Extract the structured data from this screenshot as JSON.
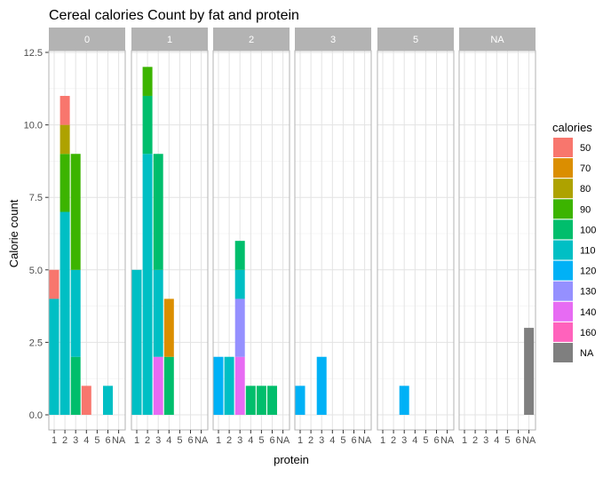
{
  "chart_data": {
    "type": "bar",
    "stacked": true,
    "title": "Cereal calories Count by fat and protein",
    "xlabel": "protein",
    "ylabel": "Calorie count",
    "ylim": [
      0,
      12.5
    ],
    "yticks": [
      0.0,
      2.5,
      5.0,
      7.5,
      10.0,
      12.5
    ],
    "y_tick_labels": [
      "0.0",
      "2.5",
      "5.0",
      "7.5",
      "10.0",
      "12.5"
    ],
    "categories": [
      "1",
      "2",
      "3",
      "4",
      "5",
      "6",
      "NA"
    ],
    "facet_variable": "fat",
    "facets": [
      "0",
      "1",
      "2",
      "3",
      "5",
      "NA"
    ],
    "grid": true,
    "legend": {
      "title": "calories",
      "placement": "right",
      "entries": [
        {
          "label": "50",
          "color": "#F8766D"
        },
        {
          "label": "70",
          "color": "#DB8E00"
        },
        {
          "label": "80",
          "color": "#AEA200"
        },
        {
          "label": "90",
          "color": "#3CB400"
        },
        {
          "label": "100",
          "color": "#00BE6C"
        },
        {
          "label": "110",
          "color": "#00BFC4"
        },
        {
          "label": "120",
          "color": "#00B1F6"
        },
        {
          "label": "130",
          "color": "#9590FF"
        },
        {
          "label": "140",
          "color": "#E76BF3"
        },
        {
          "label": "160",
          "color": "#FF62BC"
        },
        {
          "label": "NA",
          "color": "#7F7F7F"
        }
      ]
    },
    "data": [
      {
        "fat": "0",
        "protein": "1",
        "segments": [
          {
            "calories": "110",
            "count": 4
          },
          {
            "calories": "50",
            "count": 1
          }
        ]
      },
      {
        "fat": "0",
        "protein": "2",
        "segments": [
          {
            "calories": "110",
            "count": 7
          },
          {
            "calories": "90",
            "count": 2
          },
          {
            "calories": "80",
            "count": 1
          },
          {
            "calories": "50",
            "count": 1
          }
        ]
      },
      {
        "fat": "0",
        "protein": "3",
        "segments": [
          {
            "calories": "100",
            "count": 2
          },
          {
            "calories": "110",
            "count": 3
          },
          {
            "calories": "90",
            "count": 4
          }
        ]
      },
      {
        "fat": "0",
        "protein": "4",
        "segments": [
          {
            "calories": "50",
            "count": 1
          }
        ]
      },
      {
        "fat": "0",
        "protein": "6",
        "segments": [
          {
            "calories": "110",
            "count": 1
          }
        ]
      },
      {
        "fat": "1",
        "protein": "1",
        "segments": [
          {
            "calories": "110",
            "count": 5
          }
        ]
      },
      {
        "fat": "1",
        "protein": "2",
        "segments": [
          {
            "calories": "110",
            "count": 9
          },
          {
            "calories": "100",
            "count": 2
          },
          {
            "calories": "90",
            "count": 1
          }
        ]
      },
      {
        "fat": "1",
        "protein": "3",
        "segments": [
          {
            "calories": "140",
            "count": 2
          },
          {
            "calories": "110",
            "count": 3
          },
          {
            "calories": "100",
            "count": 4
          }
        ]
      },
      {
        "fat": "1",
        "protein": "4",
        "segments": [
          {
            "calories": "100",
            "count": 2
          },
          {
            "calories": "70",
            "count": 2
          }
        ]
      },
      {
        "fat": "2",
        "protein": "1",
        "segments": [
          {
            "calories": "120",
            "count": 2
          }
        ]
      },
      {
        "fat": "2",
        "protein": "2",
        "segments": [
          {
            "calories": "110",
            "count": 2
          }
        ]
      },
      {
        "fat": "2",
        "protein": "3",
        "segments": [
          {
            "calories": "140",
            "count": 2
          },
          {
            "calories": "130",
            "count": 2
          },
          {
            "calories": "110",
            "count": 1
          },
          {
            "calories": "100",
            "count": 1
          }
        ]
      },
      {
        "fat": "2",
        "protein": "4",
        "segments": [
          {
            "calories": "100",
            "count": 1
          }
        ]
      },
      {
        "fat": "2",
        "protein": "5",
        "segments": [
          {
            "calories": "100",
            "count": 1
          }
        ]
      },
      {
        "fat": "2",
        "protein": "6",
        "segments": [
          {
            "calories": "100",
            "count": 1
          }
        ]
      },
      {
        "fat": "3",
        "protein": "1",
        "segments": [
          {
            "calories": "120",
            "count": 1
          }
        ]
      },
      {
        "fat": "3",
        "protein": "3",
        "segments": [
          {
            "calories": "120",
            "count": 2
          }
        ]
      },
      {
        "fat": "5",
        "protein": "3",
        "segments": [
          {
            "calories": "120",
            "count": 1
          }
        ]
      },
      {
        "fat": "NA",
        "protein": "NA",
        "segments": [
          {
            "calories": "NA",
            "count": 3
          }
        ]
      }
    ]
  }
}
